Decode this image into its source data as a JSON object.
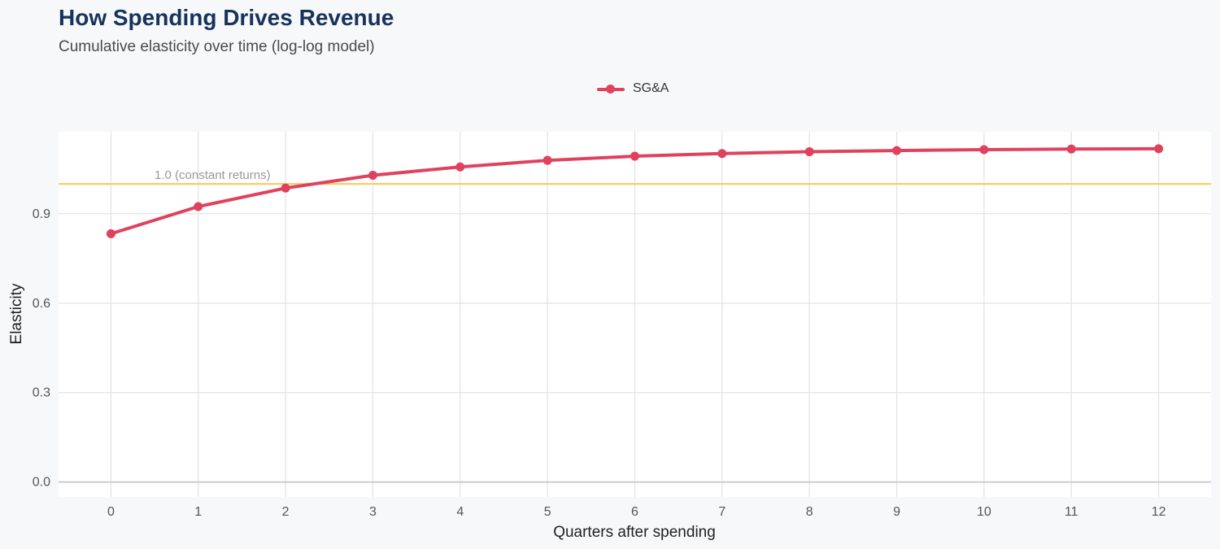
{
  "chart_data": {
    "type": "line",
    "title": "How Spending Drives Revenue",
    "subtitle": "Cumulative elasticity over time (log-log model)",
    "xlabel": "Quarters after spending",
    "ylabel": "Elasticity",
    "x": [
      0,
      1,
      2,
      3,
      4,
      5,
      6,
      7,
      8,
      9,
      10,
      11,
      12
    ],
    "x_ticks": [
      "0",
      "1",
      "2",
      "3",
      "4",
      "5",
      "6",
      "7",
      "8",
      "9",
      "10",
      "11",
      "12"
    ],
    "y_ticks": [
      "0.0",
      "0.3",
      "0.6",
      "0.9"
    ],
    "y_tick_values": [
      0.0,
      0.3,
      0.6,
      0.9
    ],
    "xlim": [
      -0.6,
      12.6
    ],
    "ylim": [
      -0.05,
      1.175
    ],
    "series": [
      {
        "name": "SG&A",
        "color": "#e0425e",
        "values": [
          0.833,
          0.924,
          0.986,
          1.029,
          1.057,
          1.079,
          1.093,
          1.102,
          1.108,
          1.112,
          1.115,
          1.117,
          1.118
        ]
      }
    ],
    "reference_line": {
      "value": 1.0,
      "label": "1.0 (constant returns)",
      "color": "#f5cf63"
    },
    "legend_position": "top",
    "grid": true
  }
}
